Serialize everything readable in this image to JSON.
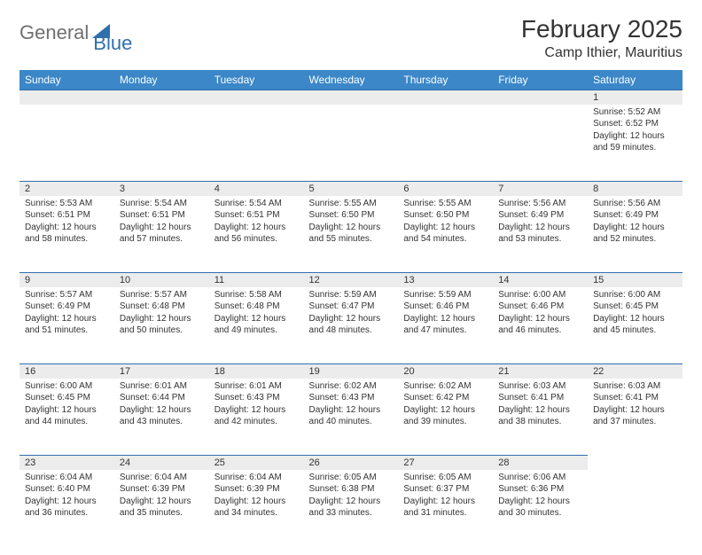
{
  "brand": {
    "part1": "General",
    "part2": "Blue"
  },
  "title": "February 2025",
  "location": "Camp Ithier, Mauritius",
  "colors": {
    "header_bg": "#3b87c8",
    "header_text": "#ffffff",
    "daynum_bg": "#ececec",
    "rule": "#2f6fad",
    "logo_gray": "#6f6f6f",
    "logo_blue": "#2f6fad",
    "text": "#333333",
    "page_bg": "#ffffff"
  },
  "dayHeaders": [
    "Sunday",
    "Monday",
    "Tuesday",
    "Wednesday",
    "Thursday",
    "Friday",
    "Saturday"
  ],
  "weeks": [
    [
      null,
      null,
      null,
      null,
      null,
      null,
      {
        "n": "1",
        "sunrise": "5:52 AM",
        "sunset": "6:52 PM",
        "dl": "12 hours and 59 minutes."
      }
    ],
    [
      {
        "n": "2",
        "sunrise": "5:53 AM",
        "sunset": "6:51 PM",
        "dl": "12 hours and 58 minutes."
      },
      {
        "n": "3",
        "sunrise": "5:54 AM",
        "sunset": "6:51 PM",
        "dl": "12 hours and 57 minutes."
      },
      {
        "n": "4",
        "sunrise": "5:54 AM",
        "sunset": "6:51 PM",
        "dl": "12 hours and 56 minutes."
      },
      {
        "n": "5",
        "sunrise": "5:55 AM",
        "sunset": "6:50 PM",
        "dl": "12 hours and 55 minutes."
      },
      {
        "n": "6",
        "sunrise": "5:55 AM",
        "sunset": "6:50 PM",
        "dl": "12 hours and 54 minutes."
      },
      {
        "n": "7",
        "sunrise": "5:56 AM",
        "sunset": "6:49 PM",
        "dl": "12 hours and 53 minutes."
      },
      {
        "n": "8",
        "sunrise": "5:56 AM",
        "sunset": "6:49 PM",
        "dl": "12 hours and 52 minutes."
      }
    ],
    [
      {
        "n": "9",
        "sunrise": "5:57 AM",
        "sunset": "6:49 PM",
        "dl": "12 hours and 51 minutes."
      },
      {
        "n": "10",
        "sunrise": "5:57 AM",
        "sunset": "6:48 PM",
        "dl": "12 hours and 50 minutes."
      },
      {
        "n": "11",
        "sunrise": "5:58 AM",
        "sunset": "6:48 PM",
        "dl": "12 hours and 49 minutes."
      },
      {
        "n": "12",
        "sunrise": "5:59 AM",
        "sunset": "6:47 PM",
        "dl": "12 hours and 48 minutes."
      },
      {
        "n": "13",
        "sunrise": "5:59 AM",
        "sunset": "6:46 PM",
        "dl": "12 hours and 47 minutes."
      },
      {
        "n": "14",
        "sunrise": "6:00 AM",
        "sunset": "6:46 PM",
        "dl": "12 hours and 46 minutes."
      },
      {
        "n": "15",
        "sunrise": "6:00 AM",
        "sunset": "6:45 PM",
        "dl": "12 hours and 45 minutes."
      }
    ],
    [
      {
        "n": "16",
        "sunrise": "6:00 AM",
        "sunset": "6:45 PM",
        "dl": "12 hours and 44 minutes."
      },
      {
        "n": "17",
        "sunrise": "6:01 AM",
        "sunset": "6:44 PM",
        "dl": "12 hours and 43 minutes."
      },
      {
        "n": "18",
        "sunrise": "6:01 AM",
        "sunset": "6:43 PM",
        "dl": "12 hours and 42 minutes."
      },
      {
        "n": "19",
        "sunrise": "6:02 AM",
        "sunset": "6:43 PM",
        "dl": "12 hours and 40 minutes."
      },
      {
        "n": "20",
        "sunrise": "6:02 AM",
        "sunset": "6:42 PM",
        "dl": "12 hours and 39 minutes."
      },
      {
        "n": "21",
        "sunrise": "6:03 AM",
        "sunset": "6:41 PM",
        "dl": "12 hours and 38 minutes."
      },
      {
        "n": "22",
        "sunrise": "6:03 AM",
        "sunset": "6:41 PM",
        "dl": "12 hours and 37 minutes."
      }
    ],
    [
      {
        "n": "23",
        "sunrise": "6:04 AM",
        "sunset": "6:40 PM",
        "dl": "12 hours and 36 minutes."
      },
      {
        "n": "24",
        "sunrise": "6:04 AM",
        "sunset": "6:39 PM",
        "dl": "12 hours and 35 minutes."
      },
      {
        "n": "25",
        "sunrise": "6:04 AM",
        "sunset": "6:39 PM",
        "dl": "12 hours and 34 minutes."
      },
      {
        "n": "26",
        "sunrise": "6:05 AM",
        "sunset": "6:38 PM",
        "dl": "12 hours and 33 minutes."
      },
      {
        "n": "27",
        "sunrise": "6:05 AM",
        "sunset": "6:37 PM",
        "dl": "12 hours and 31 minutes."
      },
      {
        "n": "28",
        "sunrise": "6:06 AM",
        "sunset": "6:36 PM",
        "dl": "12 hours and 30 minutes."
      },
      null
    ]
  ],
  "labels": {
    "sunrise": "Sunrise:",
    "sunset": "Sunset:",
    "daylight": "Daylight:"
  }
}
